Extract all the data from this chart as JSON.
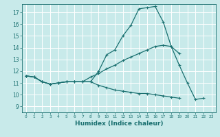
{
  "title": "",
  "xlabel": "Humidex (Indice chaleur)",
  "ylabel": "",
  "bg_color": "#c8eaea",
  "grid_color": "#ffffff",
  "line_color": "#1a7070",
  "x_ticks": [
    0,
    1,
    2,
    3,
    4,
    5,
    6,
    7,
    8,
    9,
    10,
    11,
    12,
    13,
    14,
    15,
    16,
    17,
    18,
    19,
    20,
    21,
    22,
    23
  ],
  "y_ticks": [
    9,
    10,
    11,
    12,
    13,
    14,
    15,
    16,
    17
  ],
  "ylim": [
    8.5,
    17.7
  ],
  "xlim": [
    -0.5,
    23.5
  ],
  "lines": [
    {
      "x": [
        0,
        1,
        2,
        3,
        4,
        5,
        6,
        7,
        8,
        9,
        10,
        11,
        12,
        13,
        14,
        15,
        16,
        17,
        18,
        19,
        20,
        21,
        22
      ],
      "y": [
        11.6,
        11.5,
        11.1,
        10.9,
        11.0,
        11.1,
        11.1,
        11.1,
        11.1,
        12.0,
        13.4,
        13.8,
        15.0,
        15.9,
        17.3,
        17.4,
        17.5,
        16.2,
        14.1,
        12.5,
        11.0,
        9.6,
        9.7
      ]
    },
    {
      "x": [
        0,
        1,
        2,
        3,
        4,
        5,
        6,
        7,
        8,
        9,
        10,
        11,
        12,
        13,
        14,
        15,
        16,
        17,
        18,
        19
      ],
      "y": [
        11.6,
        11.5,
        11.1,
        10.9,
        11.0,
        11.1,
        11.1,
        11.1,
        11.5,
        11.8,
        12.2,
        12.5,
        12.9,
        13.2,
        13.5,
        13.8,
        14.1,
        14.2,
        14.1,
        13.5
      ]
    },
    {
      "x": [
        0,
        1,
        2,
        3,
        4,
        5,
        6,
        7,
        8,
        9,
        10,
        11,
        12,
        13,
        14,
        15,
        16,
        17,
        18,
        19
      ],
      "y": [
        11.6,
        11.5,
        11.1,
        10.9,
        11.0,
        11.1,
        11.1,
        11.1,
        11.1,
        10.8,
        10.6,
        10.4,
        10.3,
        10.2,
        10.1,
        10.1,
        10.0,
        9.9,
        9.8,
        9.7
      ]
    }
  ]
}
